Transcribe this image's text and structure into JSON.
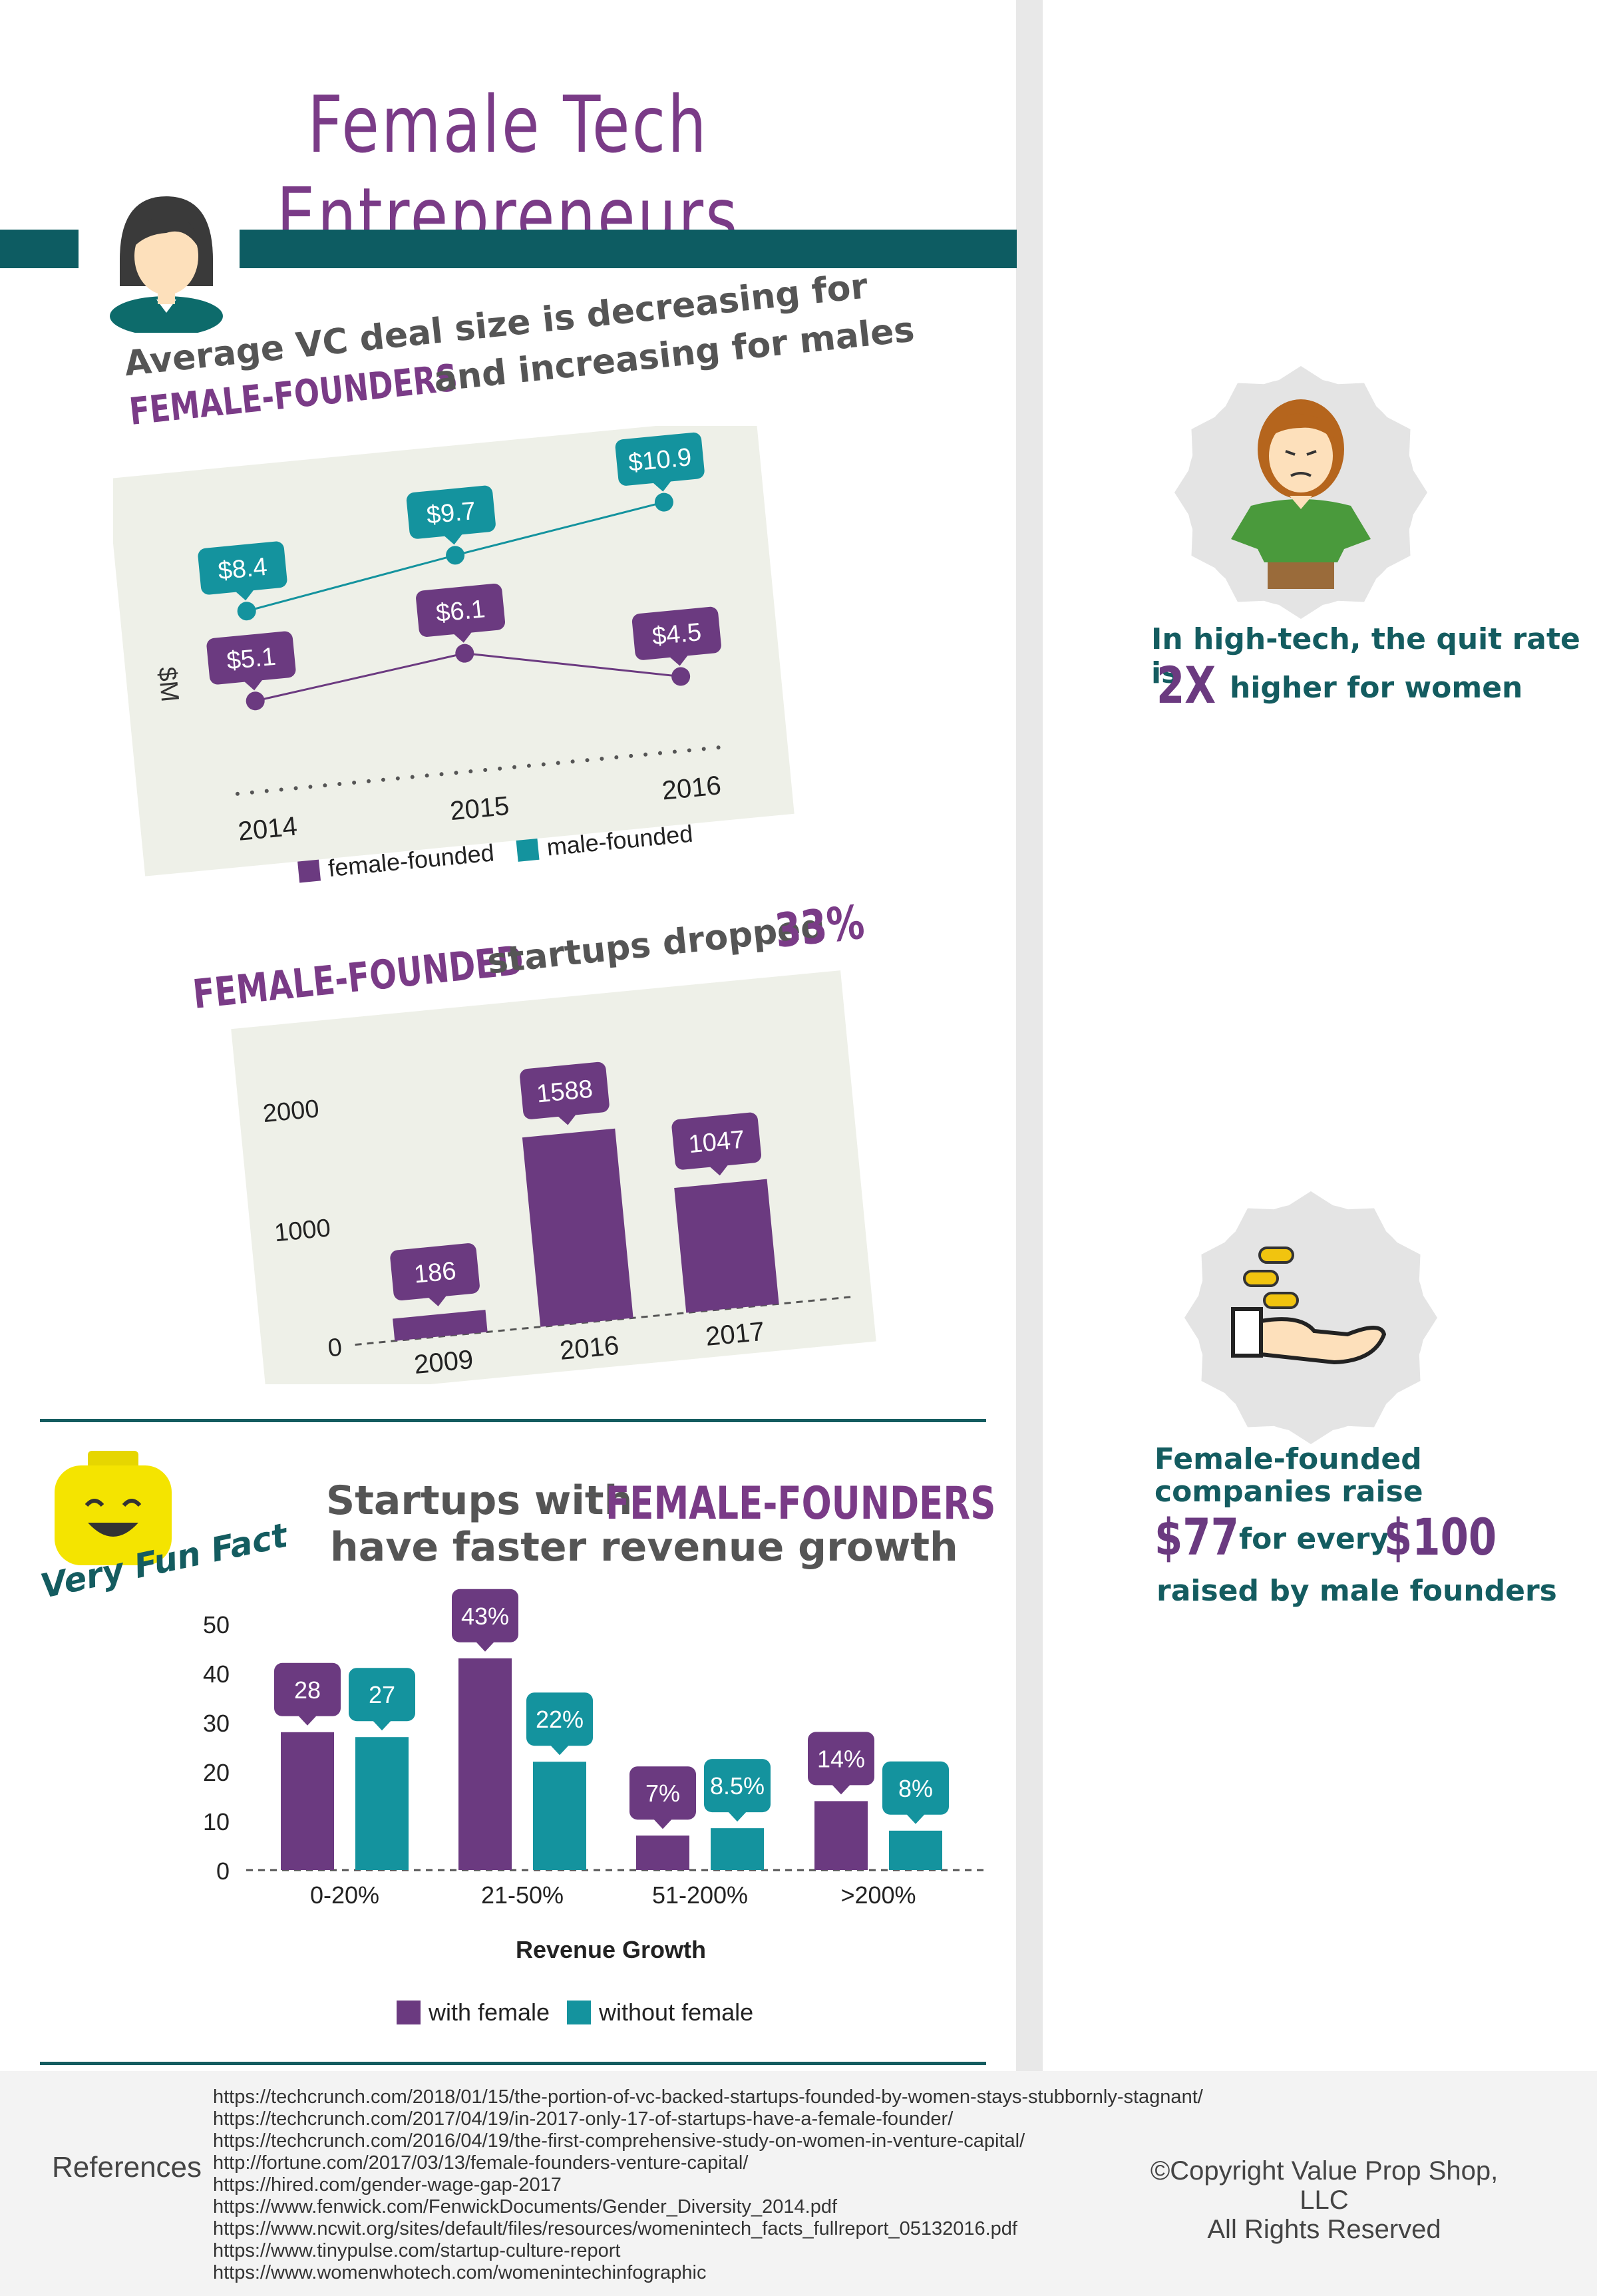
{
  "title": "Female Tech Entrepreneurs",
  "vc_section": {
    "heading_line1": "Average VC deal size is decreasing for",
    "heading_emph": "FEMALE-FOUNDERS",
    "heading_line2": "and increasing for males",
    "ylabel": "$M",
    "legend_female": "female-founded",
    "legend_male": "male-founded"
  },
  "dropped_section": {
    "heading_emph": "FEMALE-FOUNDED",
    "heading_text": "startups dropped",
    "heading_pct": "33%"
  },
  "fun_fact": {
    "badge": "Very Fun Fact",
    "heading_text1": "Startups with",
    "heading_emph": "FEMALE-FOUNDERS",
    "heading_text2": "have faster revenue growth",
    "xlabel": "Revenue Growth",
    "legend_with": "with female",
    "legend_without": "without female"
  },
  "quit_stat": {
    "line1": "In high-tech, the quit rate is",
    "big": "2X",
    "line2": "higher for women"
  },
  "raise_stat": {
    "line1": "Female-founded",
    "line2": "companies raise",
    "big1": "$77",
    "mid": "for every",
    "big2": "$100",
    "line3": "raised by male founders"
  },
  "references_label": "References",
  "references": [
    "https://techcrunch.com/2018/01/15/the-portion-of-vc-backed-startups-founded-by-women-stays-stubbornly-stagnant/",
    "https://techcrunch.com/2017/04/19/in-2017-only-17-of-startups-have-a-female-founder/",
    "https://techcrunch.com/2016/04/19/the-first-comprehensive-study-on-women-in-venture-capital/",
    "http://fortune.com/2017/03/13/female-founders-venture-capital/",
    "https://hired.com/gender-wage-gap-2017",
    "https://www.fenwick.com/FenwickDocuments/Gender_Diversity_2014.pdf",
    "https://www.ncwit.org/sites/default/files/resources/womenintech_facts_fullreport_05132016.pdf",
    "https://www.tinypulse.com/startup-culture-report",
    "https://www.womenwhotech.com/womenintechinfographic"
  ],
  "copyright_line1": "©Copyright  Value Prop Shop, LLC",
  "copyright_line2": "All Rights Reserved",
  "colors": {
    "purple": "#6b3a80",
    "teal": "#14939e",
    "dark_teal": "#0d5c62",
    "panel": "#eef0e8"
  },
  "chart_data": [
    {
      "type": "line",
      "x": [
        "2014",
        "2015",
        "2016"
      ],
      "series": [
        {
          "name": "female-founded",
          "values": [
            5.1,
            6.1,
            4.5
          ],
          "labels": [
            "$5.1",
            "$6.1",
            "$4.5"
          ]
        },
        {
          "name": "male-founded",
          "values": [
            8.4,
            9.7,
            10.9
          ],
          "labels": [
            "$8.4",
            "$9.7",
            "$10.9"
          ]
        }
      ],
      "ylabel": "$M"
    },
    {
      "type": "bar",
      "categories": [
        "2009",
        "2016",
        "2017"
      ],
      "values": [
        186,
        1588,
        1047
      ],
      "yticks": [
        "0",
        "1000",
        "2000"
      ],
      "ylim": [
        0,
        2000
      ]
    },
    {
      "type": "bar",
      "categories": [
        "0-20%",
        "21-50%",
        "51-200%",
        ">200%"
      ],
      "series": [
        {
          "name": "with female",
          "values": [
            28,
            43,
            7,
            14
          ],
          "labels": [
            "28",
            "43%",
            "7%",
            "14%"
          ]
        },
        {
          "name": "without female",
          "values": [
            27,
            22,
            8.5,
            8
          ],
          "labels": [
            "27",
            "22%",
            "8.5%",
            "8%"
          ]
        }
      ],
      "yticks": [
        "0",
        "10",
        "20",
        "30",
        "40",
        "50"
      ],
      "ylim": [
        0,
        50
      ],
      "xlabel": "Revenue Growth"
    }
  ]
}
